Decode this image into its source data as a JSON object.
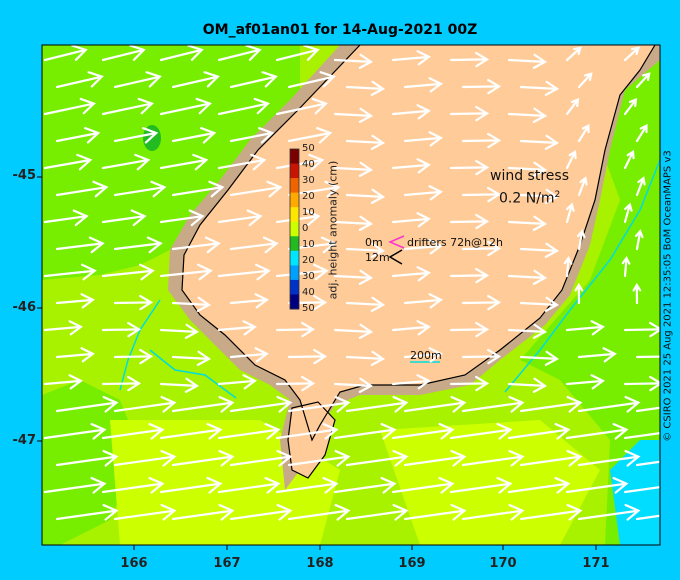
{
  "title": "OM_af01an01 for 14-Aug-2021 00Z",
  "credit": "© CSIRO 2021   25 Aug 2021 12:35:05 BoM OceanMAPS v3",
  "x_ticks": [
    "166",
    "167",
    "168",
    "169",
    "170",
    "171"
  ],
  "y_ticks": [
    "-45",
    "-46",
    "-47"
  ],
  "colorbar": {
    "label": "adj. height anomaly (cm)",
    "ticks": [
      "50",
      "40",
      "30",
      "20",
      "10",
      "0",
      "10",
      "20",
      "30",
      "40",
      "50"
    ],
    "colors": [
      "#7a0000",
      "#c81400",
      "#f06400",
      "#ffaa00",
      "#ffe600",
      "#ccff00",
      "#22bb22",
      "#00e6ff",
      "#00a0ff",
      "#0032c8",
      "#000080"
    ]
  },
  "legend": {
    "wind_title": "wind stress",
    "wind_value": "0.2 N/m",
    "wind_sup": "2",
    "drifter_0m": "0m",
    "drifter_12m": "12m",
    "drifter_text": "drifters 72h@12h",
    "isobath": "200m"
  },
  "colors": {
    "land": "#ffcc99",
    "shelf": "#c8aa88",
    "sea_green": "#77ee00",
    "sea_lime": "#ccff00",
    "sea_mid": "#a8f200",
    "frame": "#00ccff",
    "arrows": "#ffffff",
    "rivers": "#00dddd"
  }
}
